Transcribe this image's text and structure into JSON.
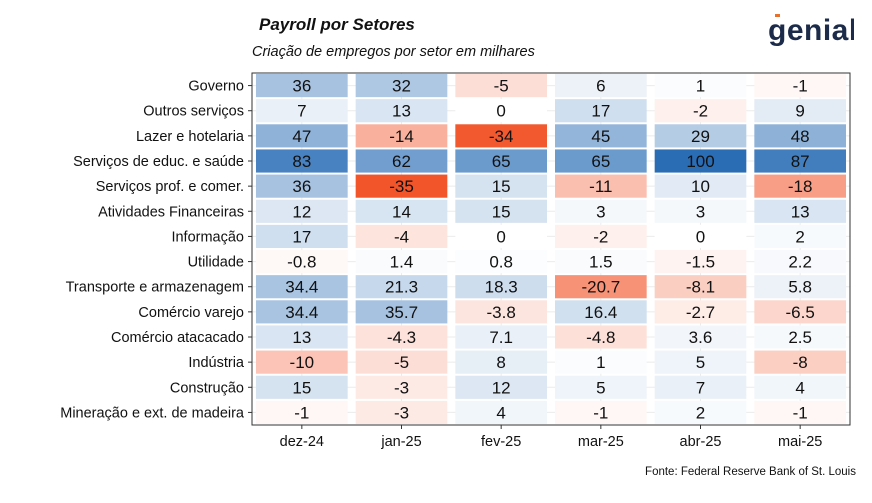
{
  "header": {
    "title": "Payroll por Setores",
    "subtitle": "Criação de empregos por setor em milhares"
  },
  "logo": {
    "text": "genial"
  },
  "footer": {
    "source": "Fonte: Federal Reserve Bank of St. Louis"
  },
  "chart_data": {
    "type": "heatmap",
    "title": "Payroll por Setores",
    "subtitle": "Criação de empregos por setor em milhares",
    "x": [
      "dez-24",
      "jan-25",
      "fev-25",
      "mar-25",
      "abr-25",
      "mai-25"
    ],
    "y": [
      "Governo",
      "Outros serviços",
      "Lazer e hotelaria",
      "Serviços de educ. e saúde",
      "Serviços prof. e comer.",
      "Atividades Financeiras",
      "Informação",
      "Utilidade",
      "Transporte e armazenagem",
      "Comércio varejo",
      "Comércio atacacado",
      "Indústria",
      "Construção",
      "Mineração e ext. de madeira"
    ],
    "labels": [
      [
        "36",
        "32",
        "-5",
        "6",
        "1",
        "-1"
      ],
      [
        "7",
        "13",
        "0",
        "17",
        "-2",
        "9"
      ],
      [
        "47",
        "-14",
        "-34",
        "45",
        "29",
        "48"
      ],
      [
        "83",
        "62",
        "65",
        "65",
        "100",
        "87"
      ],
      [
        "36",
        "-35",
        "15",
        "-11",
        "10",
        "-18"
      ],
      [
        "12",
        "14",
        "15",
        "3",
        "3",
        "13"
      ],
      [
        "17",
        "-4",
        "0",
        "-2",
        "0",
        "2"
      ],
      [
        "-0.8",
        "1.4",
        "0.8",
        "1.5",
        "-1.5",
        "2.2"
      ],
      [
        "34.4",
        "21.3",
        "18.3",
        "-20.7",
        "-8.1",
        "5.8"
      ],
      [
        "34.4",
        "35.7",
        "-3.8",
        "16.4",
        "-2.7",
        "-6.5"
      ],
      [
        "13",
        "-4.3",
        "7.1",
        "-4.8",
        "3.6",
        "2.5"
      ],
      [
        "-10",
        "-5",
        "8",
        "1",
        "5",
        "-8"
      ],
      [
        "15",
        "-3",
        "12",
        "5",
        "7",
        "4"
      ],
      [
        "-1",
        "-3",
        "4",
        "-1",
        "2",
        "-1"
      ]
    ],
    "color_scale": {
      "positive": "#2a6db5",
      "negative": "#f2552a",
      "neutral": "#ffffff"
    },
    "grid": true
  }
}
